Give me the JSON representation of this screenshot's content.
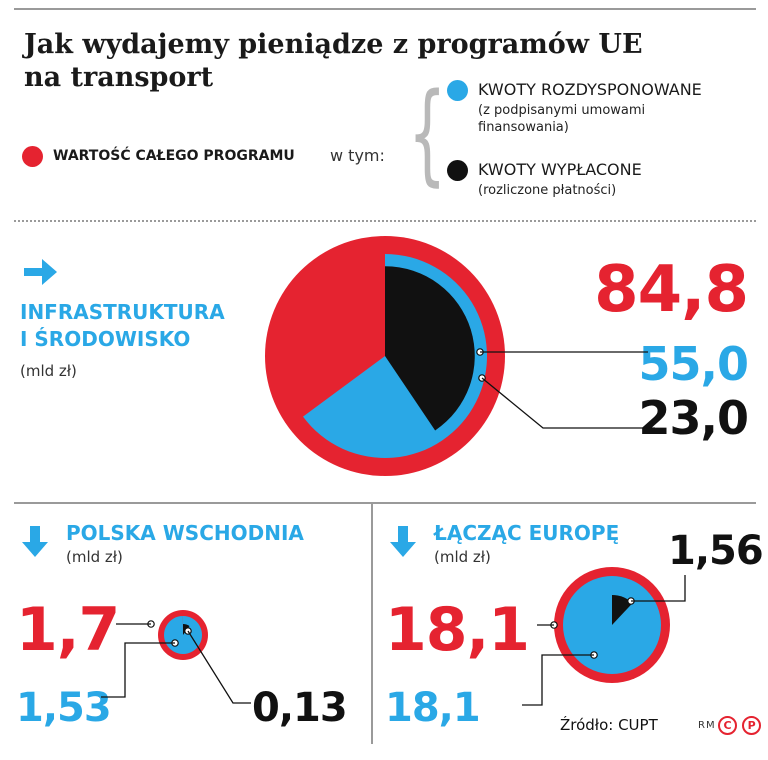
{
  "title": "Jak wydajemy pieniądze z programów UE na transport",
  "legend": {
    "total_label": "WARTOŚĆ CAŁEGO PROGRAMU",
    "in_which": "w tym:",
    "allocated_label": "KWOTY ROZDYSPONOWANE",
    "allocated_note": "(z podpisanymi umowami finansowania)",
    "paid_label": "KWOTY WYPŁACONE",
    "paid_note": "(rozliczone płatności)"
  },
  "colors": {
    "total": "#e52330",
    "allocated": "#2aa8e6",
    "paid": "#111111",
    "accent_blue": "#2aa8e6"
  },
  "icons": {
    "section1": "arrow-right-icon",
    "section2": "arrow-down-icon",
    "section3": "arrow-down-icon"
  },
  "chart_data": [
    {
      "type": "pie",
      "title_line1": "INFRASTRUKTURA",
      "title_line2": "I ŚRODOWISKO",
      "unit": "(mld zł)",
      "total": 84.8,
      "allocated": 55.0,
      "paid": 23.0,
      "total_text": "84,8",
      "allocated_text": "55,0",
      "paid_text": "23,0"
    },
    {
      "type": "pie",
      "title_line1": "POLSKA WSCHODNIA",
      "unit": "(mld zł)",
      "total": 1.7,
      "allocated": 1.53,
      "paid": 0.13,
      "total_text": "1,7",
      "allocated_text": "1,53",
      "paid_text": "0,13"
    },
    {
      "type": "pie",
      "title_line1": "ŁĄCZĄC EUROPĘ",
      "unit": "(mld zł)",
      "total": 18.1,
      "allocated": 18.1,
      "paid": 1.56,
      "total_text": "18,1",
      "allocated_text": "18,1",
      "paid_text": "1,56"
    }
  ],
  "footer": {
    "source": "Źródło: CUPT",
    "credit": "RM",
    "logo_letters": "P"
  }
}
